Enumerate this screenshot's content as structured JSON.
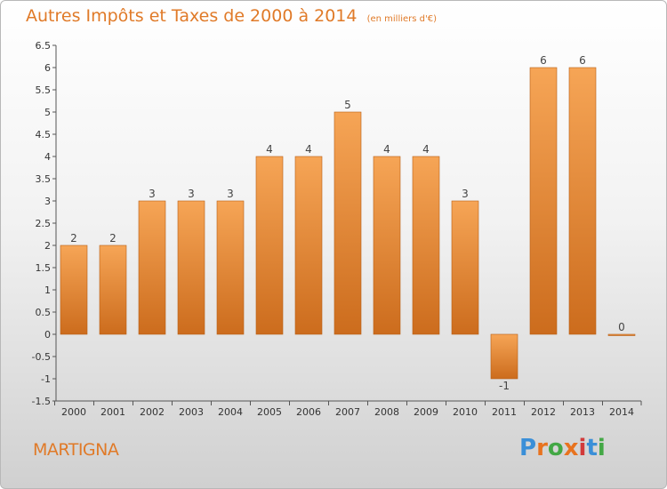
{
  "header": {
    "title": "Autres Impôts et Taxes de 2000 à 2014",
    "unit": "(en milliers d'€)"
  },
  "footer": {
    "place": "MARTIGNA",
    "brand": "Proxiti",
    "brand_colors": [
      "#3a8fd8",
      "#e8731f",
      "#43a845",
      "#e8731f",
      "#d23a3a",
      "#3a8fd8",
      "#43a845"
    ]
  },
  "colors": {
    "accent": "#e07a28",
    "bar_light": "#f6a556",
    "bar_dark": "#cc6c1d"
  },
  "chart_data": {
    "type": "bar",
    "categories": [
      "2000",
      "2001",
      "2002",
      "2003",
      "2004",
      "2005",
      "2006",
      "2007",
      "2008",
      "2009",
      "2010",
      "2011",
      "2012",
      "2013",
      "2014"
    ],
    "values": [
      2,
      2,
      3,
      3,
      3,
      4,
      4,
      5,
      4,
      4,
      3,
      -1,
      6,
      6,
      0
    ],
    "data_labels": [
      "2",
      "2",
      "3",
      "3",
      "3",
      "4",
      "4",
      "5",
      "4",
      "4",
      "3",
      "-1",
      "6",
      "6",
      "0"
    ],
    "title": "Autres Impôts et Taxes de 2000 à 2014",
    "unit": "(en milliers d'€)",
    "ylim": [
      -1.5,
      6.5
    ],
    "yticks": [
      6.5,
      6,
      5.5,
      5,
      4.5,
      4,
      3.5,
      3,
      2.5,
      2,
      1.5,
      1,
      0.5,
      0,
      -0.5,
      -1,
      -1.5
    ],
    "ytick_labels": [
      "6.5",
      "6",
      "5.5",
      "5",
      "4.5",
      "4",
      "3.5",
      "3",
      "2.5",
      "2",
      "1.5",
      "1",
      "0.5",
      "0",
      "-0.5",
      "-1",
      "-1.5"
    ],
    "grid": false
  }
}
